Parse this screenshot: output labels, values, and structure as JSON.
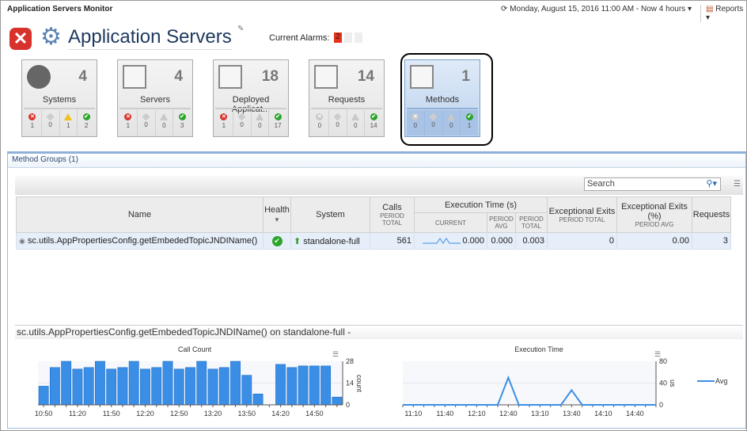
{
  "app_title": "Application Servers Monitor",
  "timerange": "Monday, August 15, 2016 11:00 AM - Now 4 hours",
  "reports_label": "Reports",
  "page_title": "Application Servers",
  "alarms": {
    "label": "Current Alarms:",
    "values": [
      "2",
      "",
      ""
    ],
    "colors": [
      "#e8321e",
      "#eeeeee",
      "#eeeeee"
    ]
  },
  "tiles": [
    {
      "label": "Systems",
      "count": "4",
      "icon": "systems-icon",
      "stats": [
        "1",
        "0",
        "1",
        "2"
      ]
    },
    {
      "label": "Servers",
      "count": "4",
      "icon": "servers-icon",
      "stats": [
        "1",
        "0",
        "0",
        "3"
      ]
    },
    {
      "label": "Deployed Applicat...",
      "count": "18",
      "icon": "deployed-apps-icon",
      "stats": [
        "1",
        "0",
        "0",
        "17"
      ]
    },
    {
      "label": "Requests",
      "count": "14",
      "icon": "requests-icon",
      "stats": [
        "0",
        "0",
        "0",
        "14"
      ]
    },
    {
      "label": "Methods",
      "count": "1",
      "icon": "methods-icon",
      "stats": [
        "0",
        "0",
        "0",
        "1"
      ],
      "selected": true
    }
  ],
  "panel": {
    "title": "Method Groups (1)",
    "search_placeholder": "Search"
  },
  "table": {
    "headers": {
      "name": "Name",
      "health": "Health",
      "system": "System",
      "calls": "Calls",
      "calls_sub": "PERIOD TOTAL",
      "exec": "Execution Time (s)",
      "current": "CURRENT",
      "period_avg": "PERIOD AVG",
      "period_total": "PERIOD TOTAL",
      "exc": "Exceptional Exits",
      "exc_sub": "PERIOD TOTAL",
      "excp": "Exceptional Exits (%)",
      "excp_sub": "PERIOD AVG",
      "requests": "Requests"
    },
    "rows": [
      {
        "name": "sc.utils.AppPropertiesConfig.getEmbededTopicJNDIName()",
        "health": "ok",
        "system": "standalone-full",
        "calls": "561",
        "current": "0.000",
        "period_avg": "0.000",
        "period_total": "0.003",
        "exc": "0",
        "excp": "0.00",
        "requests": "3"
      }
    ]
  },
  "detail_title": "sc.utils.AppPropertiesConfig.getEmbededTopicJNDIName() on standalone-full -",
  "chart_data": [
    {
      "type": "bar",
      "title": "Call Count",
      "ylabel": "count",
      "ylim": [
        0,
        28
      ],
      "yticks": [
        "0",
        "14",
        "28"
      ],
      "xticks": [
        "10:50",
        "11:20",
        "11:50",
        "12:20",
        "12:50",
        "13:20",
        "13:50",
        "14:20",
        "14:50"
      ],
      "categories": [
        "10:50",
        "11:00",
        "11:10",
        "11:20",
        "11:30",
        "11:40",
        "11:50",
        "12:00",
        "12:10",
        "12:20",
        "12:30",
        "12:40",
        "12:50",
        "13:00",
        "13:10",
        "13:20",
        "13:30",
        "13:40",
        "13:50",
        "14:00",
        "14:10",
        "14:20",
        "14:30",
        "14:40",
        "14:50",
        "15:00",
        "15:10"
      ],
      "values": [
        12,
        24,
        28,
        23,
        24,
        28,
        23,
        24,
        28,
        23,
        24,
        28,
        23,
        24,
        28,
        23,
        24,
        28,
        19,
        7,
        0,
        26,
        24,
        25,
        25,
        25,
        5
      ],
      "color": "#3a8ee6"
    },
    {
      "type": "line",
      "title": "Execution Time",
      "ylabel": "us",
      "ylim": [
        0,
        80
      ],
      "yticks": [
        "0",
        "40",
        "80"
      ],
      "xticks": [
        "11:10",
        "11:40",
        "12:10",
        "12:40",
        "13:10",
        "13:40",
        "14:10",
        "14:40"
      ],
      "series": [
        {
          "name": "Avg",
          "x": [
            "11:00",
            "12:30",
            "12:40",
            "12:50",
            "13:30",
            "13:40",
            "13:50",
            "15:00"
          ],
          "values": [
            0,
            0,
            50,
            0,
            0,
            27,
            0,
            0
          ]
        }
      ],
      "legend": "right",
      "color": "#3a8ee6"
    }
  ]
}
